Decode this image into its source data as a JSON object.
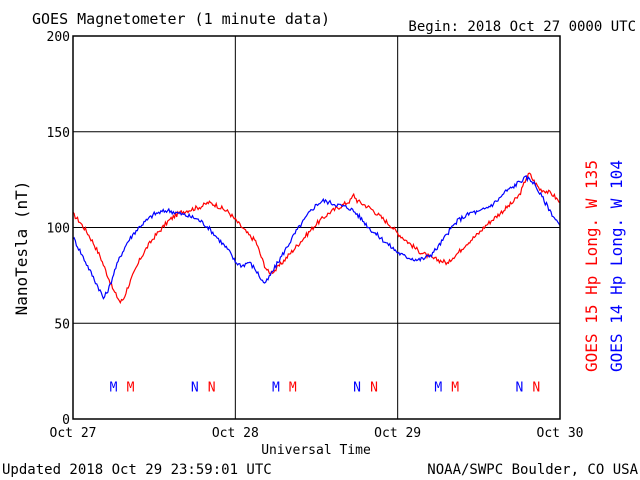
{
  "header": {
    "title": "GOES Magnetometer (1 minute data)",
    "begin": "Begin:  2018 Oct 27 0000 UTC"
  },
  "footer": {
    "updated": "Updated 2018 Oct 29 23:59:01 UTC",
    "credit": "NOAA/SWPC Boulder, CO USA"
  },
  "colors": {
    "red": "#ff0000",
    "blue": "#0000ff",
    "frame": "#000000"
  },
  "chart_data": {
    "type": "line",
    "xlabel": "Universal Time",
    "ylabel": "NanoTesla (nT)",
    "xlim": [
      0,
      72
    ],
    "x_unit": "hours since 2018 Oct 27 0000 UTC",
    "ylim": [
      0,
      200
    ],
    "yticks": [
      0,
      50,
      100,
      150,
      200
    ],
    "xticks": [
      {
        "x": 0,
        "label": "Oct 27"
      },
      {
        "x": 24,
        "label": "Oct 28"
      },
      {
        "x": 48,
        "label": "Oct 29"
      },
      {
        "x": 72,
        "label": "Oct 30"
      }
    ],
    "grid": true,
    "legend": "right (vertical)",
    "series": [
      {
        "name": "GOES 15 Hp  Long. W 135",
        "color": "#ff0000",
        "x": [
          0,
          1,
          2,
          3,
          4,
          5,
          6,
          6.5,
          7,
          7.5,
          8,
          9,
          10,
          11,
          12,
          13,
          14,
          15,
          16,
          17,
          18,
          19,
          20,
          21,
          22,
          23,
          24,
          25,
          26,
          27,
          27.5,
          28,
          28.5,
          29,
          30,
          31,
          32,
          33,
          34,
          35,
          36,
          37,
          38,
          39,
          40,
          41,
          41.5,
          42,
          43,
          44,
          45,
          46,
          47,
          48,
          49,
          50,
          51,
          52,
          53,
          54,
          55,
          55.5,
          56,
          57,
          58,
          59,
          60,
          61,
          62,
          63,
          64,
          65,
          66,
          66.5,
          67,
          67.5,
          68,
          69,
          70,
          71,
          72
        ],
        "values": [
          107,
          103,
          98,
          92,
          85,
          76,
          67,
          64,
          61,
          63,
          68,
          76,
          84,
          90,
          95,
          99,
          103,
          106,
          108,
          109,
          110,
          111,
          113,
          112,
          110,
          108,
          104,
          100,
          96,
          93,
          88,
          83,
          79,
          76,
          78,
          82,
          86,
          90,
          94,
          98,
          102,
          105,
          108,
          110,
          112,
          114,
          117,
          114,
          112,
          110,
          107,
          104,
          101,
          97,
          94,
          91,
          88,
          86,
          84,
          83,
          82,
          81,
          84,
          87,
          91,
          94,
          97,
          101,
          104,
          107,
          110,
          113,
          117,
          121,
          126,
          128,
          125,
          120,
          119,
          117,
          113
        ]
      },
      {
        "name": "GOES 14 Hp  Long. W 104",
        "color": "#0000ff",
        "x": [
          0,
          1,
          2,
          3,
          4,
          4.5,
          5,
          5.5,
          6,
          7,
          8,
          9,
          10,
          11,
          12,
          13,
          14,
          15,
          16,
          17,
          18,
          19,
          20,
          21,
          22,
          23,
          24,
          25,
          26,
          27,
          28,
          28.5,
          29,
          30,
          31,
          32,
          33,
          34,
          35,
          36,
          37,
          38,
          39,
          40,
          41,
          42,
          43,
          44,
          45,
          46,
          47,
          48,
          49,
          50,
          51,
          52,
          53,
          54,
          55,
          56,
          57,
          58,
          59,
          60,
          61,
          62,
          63,
          64,
          65,
          66,
          67,
          68,
          69,
          70,
          71,
          72
        ],
        "values": [
          95,
          88,
          81,
          74,
          67,
          63,
          66,
          70,
          76,
          85,
          92,
          97,
          101,
          104,
          107,
          108,
          109,
          108,
          107,
          106,
          105,
          103,
          100,
          96,
          92,
          88,
          82,
          80,
          82,
          78,
          72,
          71,
          74,
          80,
          86,
          92,
          98,
          103,
          108,
          112,
          114,
          113,
          112,
          111,
          110,
          107,
          103,
          99,
          96,
          93,
          90,
          87,
          85,
          84,
          83,
          84,
          86,
          90,
          95,
          100,
          104,
          106,
          108,
          108,
          110,
          112,
          115,
          119,
          121,
          124,
          126,
          124,
          118,
          112,
          106,
          101
        ]
      }
    ],
    "event_markers": [
      {
        "label": "M",
        "x": 6.0,
        "color": "#0000ff"
      },
      {
        "label": "M",
        "x": 8.5,
        "color": "#ff0000"
      },
      {
        "label": "N",
        "x": 18.0,
        "color": "#0000ff"
      },
      {
        "label": "N",
        "x": 20.5,
        "color": "#ff0000"
      },
      {
        "label": "M",
        "x": 30.0,
        "color": "#0000ff"
      },
      {
        "label": "M",
        "x": 32.5,
        "color": "#ff0000"
      },
      {
        "label": "N",
        "x": 42.0,
        "color": "#0000ff"
      },
      {
        "label": "N",
        "x": 44.5,
        "color": "#ff0000"
      },
      {
        "label": "M",
        "x": 54.0,
        "color": "#0000ff"
      },
      {
        "label": "M",
        "x": 56.5,
        "color": "#ff0000"
      },
      {
        "label": "N",
        "x": 66.0,
        "color": "#0000ff"
      },
      {
        "label": "N",
        "x": 68.5,
        "color": "#ff0000"
      }
    ],
    "marker_level": 17
  }
}
